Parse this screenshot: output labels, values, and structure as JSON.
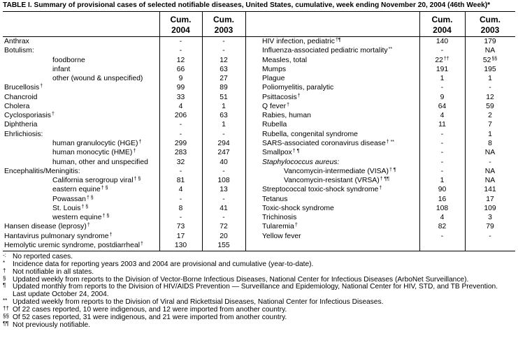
{
  "title": "TABLE I. Summary of provisional cases of selected notifiable diseases, United States, cumulative, week ending November 20, 2004 (46th Week)*",
  "left": {
    "columns": [
      {
        "line1": "Cum.",
        "line2": "2004"
      },
      {
        "line1": "Cum.",
        "line2": "2003"
      }
    ],
    "rows": [
      {
        "label": "Anthrax",
        "cum2004": "-",
        "cum2003": "-"
      },
      {
        "label": "Botulism:",
        "cum2004": "-",
        "cum2003": "-",
        "children": [
          {
            "label": "foodborne",
            "cum2004": 12,
            "cum2003": 12
          },
          {
            "label": "infant",
            "cum2004": 66,
            "cum2003": 63
          },
          {
            "label": "other (wound & unspecified)",
            "cum2004": 9,
            "cum2003": 27
          }
        ]
      },
      {
        "label": "Brucellosis",
        "note": "†",
        "cum2004": 99,
        "cum2003": 89
      },
      {
        "label": "Chancroid",
        "cum2004": 33,
        "cum2003": 51
      },
      {
        "label": "Cholera",
        "cum2004": 4,
        "cum2003": 1
      },
      {
        "label": "Cyclosporiasis",
        "note": "†",
        "cum2004": 206,
        "cum2003": 63
      },
      {
        "label": "Diphtheria",
        "cum2004": "-",
        "cum2003": 1
      },
      {
        "label": "Ehrlichiosis:",
        "cum2004": "-",
        "cum2003": "-",
        "children": [
          {
            "label": "human granulocytic (HGE)",
            "note": "†",
            "cum2004": 299,
            "cum2003": 294
          },
          {
            "label": "human monocytic (HME)",
            "note": "†",
            "cum2004": 283,
            "cum2003": 247
          },
          {
            "label": "human, other and unspecified",
            "cum2004": 32,
            "cum2003": 40
          }
        ]
      },
      {
        "label": "Encephalitis/Meningitis:",
        "cum2004": "-",
        "cum2003": "-",
        "children": [
          {
            "label": "California serogroup viral",
            "note": "† §",
            "cum2004": 81,
            "cum2003": 108
          },
          {
            "label": "eastern equine",
            "note": "† §",
            "cum2004": 4,
            "cum2003": 13
          },
          {
            "label": "Powassan",
            "note": "† §",
            "cum2004": "-",
            "cum2003": "-"
          },
          {
            "label": "St. Louis",
            "note": "† §",
            "cum2004": 8,
            "cum2003": 41
          },
          {
            "label": "western equine",
            "note": "† §",
            "cum2004": "-",
            "cum2003": "-"
          }
        ]
      },
      {
        "label": "Hansen disease (leprosy)",
        "note": "†",
        "cum2004": 73,
        "cum2003": 72
      },
      {
        "label": "Hantavirus pulmonary syndrome",
        "note": "†",
        "cum2004": 17,
        "cum2003": 20
      },
      {
        "label": "Hemolytic uremic syndrome, postdiarrheal",
        "note": "†",
        "cum2004": 130,
        "cum2003": 155
      }
    ]
  },
  "right": {
    "columns": [
      {
        "line1": "Cum.",
        "line2": "2004"
      },
      {
        "line1": "Cum.",
        "line2": "2003"
      }
    ],
    "rows": [
      {
        "label": "HIV infection, pediatric",
        "note": "†¶",
        "cum2004": 140,
        "cum2003": 179
      },
      {
        "label": "Influenza-associated pediatric mortality",
        "note": "**",
        "cum2004": "-",
        "cum2003": "NA"
      },
      {
        "label": "Measles, total",
        "cum2004": {
          "value": 22,
          "note": "††"
        },
        "cum2003": {
          "value": 52,
          "note": "§§"
        }
      },
      {
        "label": "Mumps",
        "cum2004": 191,
        "cum2003": 195
      },
      {
        "label": "Plague",
        "cum2004": 1,
        "cum2003": 1
      },
      {
        "label": "Poliomyelitis, paralytic",
        "cum2004": "-",
        "cum2003": "-"
      },
      {
        "label": "Psittacosis",
        "note": "†",
        "cum2004": 9,
        "cum2003": 12
      },
      {
        "label": "Q fever",
        "note": "†",
        "cum2004": 64,
        "cum2003": 59
      },
      {
        "label": "Rabies, human",
        "cum2004": 4,
        "cum2003": 2
      },
      {
        "label": "Rubella",
        "cum2004": 11,
        "cum2003": 7
      },
      {
        "label": "Rubella, congenital syndrome",
        "cum2004": "-",
        "cum2003": 1
      },
      {
        "label": "SARS-associated coronavirus disease",
        "note": "† **",
        "cum2004": "-",
        "cum2003": 8
      },
      {
        "label": "Smallpox",
        "note": "† ¶",
        "cum2004": "-",
        "cum2003": "NA"
      },
      {
        "label": "Staphylococcus aureus:",
        "italic": true,
        "cum2004": "-",
        "cum2003": "-",
        "children": [
          {
            "label": "Vancomycin-intermediate (VISA)",
            "note": "† ¶",
            "cum2004": "-",
            "cum2003": "NA"
          },
          {
            "label": "Vancomycin-resistant (VRSA)",
            "note": "† ¶¶",
            "cum2004": 1,
            "cum2003": "NA"
          }
        ]
      },
      {
        "label": "Streptococcal toxic-shock syndrome",
        "note": "†",
        "cum2004": 90,
        "cum2003": 141
      },
      {
        "label": "Tetanus",
        "cum2004": 16,
        "cum2003": 17
      },
      {
        "label": "Toxic-shock syndrome",
        "cum2004": 108,
        "cum2003": 109
      },
      {
        "label": "Trichinosis",
        "cum2004": 4,
        "cum2003": 3
      },
      {
        "label": "Tularemia",
        "note": "†",
        "cum2004": 82,
        "cum2003": 79
      },
      {
        "label": "Yellow fever",
        "cum2004": "-",
        "cum2003": "-"
      }
    ]
  },
  "footnotes": [
    {
      "symbol": "-:",
      "lines": [
        "No reported cases."
      ]
    },
    {
      "symbol": "*",
      "lines": [
        "Incidence data for reporting years 2003 and 2004 are provisional and cumulative (year-to-date)."
      ]
    },
    {
      "symbol": "†",
      "lines": [
        "Not notifiable in all states."
      ]
    },
    {
      "symbol": "§",
      "lines": [
        "Updated weekly from reports to the Division of Vector-Borne Infectious Diseases, National Center for Infectious Diseases (ArboNet Surveillance)."
      ]
    },
    {
      "symbol": "¶",
      "lines": [
        "Updated monthly from reports to the Division of HIV/AIDS Prevention — Surveillance and Epidemiology, National Center for HIV, STD, and TB Prevention.",
        "Last update October 24, 2004."
      ]
    },
    {
      "symbol": "**",
      "lines": [
        "Updated weekly from reports to the Division of Viral and Rickettsial Diseases, National Center for Infectious Diseases."
      ]
    },
    {
      "symbol": "††",
      "lines": [
        "Of 22 cases reported, 10 were indigenous, and 12 were imported from another country."
      ]
    },
    {
      "symbol": "§§",
      "lines": [
        "Of 52 cases reported, 31 were indigenous, and 21 were imported from another country."
      ]
    },
    {
      "symbol": "¶¶",
      "lines": [
        "Not previously notifiable."
      ]
    }
  ]
}
